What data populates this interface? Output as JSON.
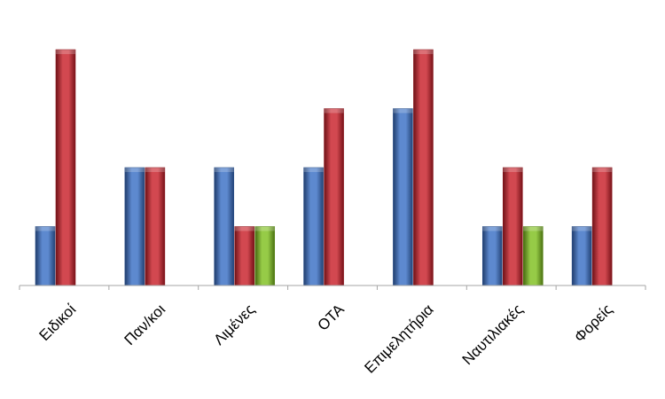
{
  "chart_data": {
    "type": "bar",
    "categories": [
      "Ειδικοί",
      "Παν/κοι",
      "Λιμένες",
      "ΟΤΑ",
      "Επιμελητήρια",
      "Ναυτιλιακές",
      "Φορείς"
    ],
    "series": [
      {
        "values": [
          1,
          2,
          2,
          2,
          3,
          1,
          1
        ],
        "color": "#3a6fc4"
      },
      {
        "values": [
          4,
          2,
          1,
          3,
          4,
          2,
          2
        ],
        "color": "#c8202a"
      },
      {
        "values": [
          0,
          0,
          1,
          0,
          0,
          1,
          0
        ],
        "color": "#7fbf1f"
      }
    ],
    "ylim": [
      0,
      4
    ],
    "grid": false,
    "legend": "none"
  }
}
